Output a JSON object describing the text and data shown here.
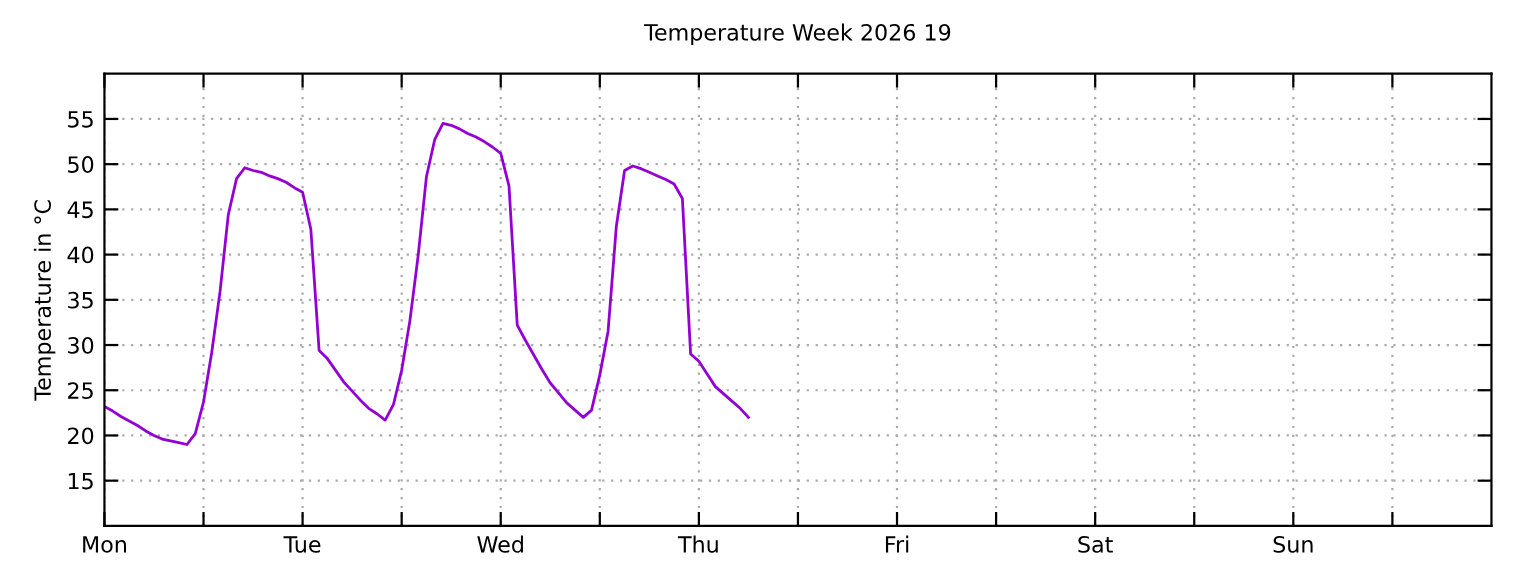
{
  "chart_data": {
    "type": "line",
    "title": "Temperature Week 2026 19",
    "ylabel": "Temperature in °C",
    "categories": [
      "Mon",
      null,
      null,
      null,
      null,
      null,
      null,
      null,
      null,
      null,
      null,
      null,
      null,
      null,
      null,
      null,
      null,
      null,
      null,
      null,
      null,
      null,
      null,
      null,
      "Tue",
      null,
      null,
      null,
      null,
      null,
      null,
      null,
      null,
      null,
      null,
      null,
      null,
      null,
      null,
      null,
      null,
      null,
      null,
      null,
      null,
      null,
      null,
      null,
      "Wed",
      null,
      null,
      null,
      null,
      null,
      null,
      null,
      null,
      null,
      null,
      null,
      null,
      null,
      null,
      null,
      null,
      null,
      null,
      null,
      null,
      null,
      null,
      null,
      "Thu",
      null,
      null,
      null,
      null,
      null,
      null,
      null,
      null,
      null,
      null,
      null,
      null,
      null,
      null,
      null,
      null,
      null,
      null,
      null,
      null,
      null,
      null,
      null,
      "Fri",
      null,
      null,
      null,
      null,
      null,
      null,
      null,
      null,
      null,
      null,
      null,
      null,
      null,
      null,
      null,
      null,
      null,
      null,
      null,
      null,
      null,
      null,
      null,
      "Sat",
      null,
      null,
      null,
      null,
      null,
      null,
      null,
      null,
      null,
      null,
      null,
      null,
      null,
      null,
      null,
      null,
      null,
      null,
      null,
      null,
      null,
      null,
      null,
      "Sun",
      null,
      null,
      null,
      null,
      null,
      null,
      null,
      null,
      null,
      null,
      null,
      null,
      null,
      null,
      null,
      null,
      null,
      null,
      null,
      null,
      null,
      null,
      null
    ],
    "series": [
      {
        "color": "#9400d3",
        "values": [
          23.2,
          22.7,
          22.1,
          21.6,
          21.1,
          20.5,
          20.0,
          19.6,
          19.4,
          19.2,
          19.0,
          20.2,
          23.7,
          29.2,
          35.9,
          44.4,
          48.4,
          49.6,
          49.3,
          49.1,
          48.7,
          48.4,
          48.0,
          47.4,
          46.9,
          42.8,
          29.4,
          28.5,
          27.2,
          25.9,
          24.9,
          23.9,
          23.0,
          22.4,
          21.7,
          23.4,
          27.2,
          32.7,
          39.9,
          48.6,
          52.7,
          54.5,
          54.3,
          53.9,
          53.4,
          53.0,
          52.5,
          51.9,
          51.2,
          47.6,
          32.2,
          30.5,
          28.9,
          27.3,
          25.8,
          24.7,
          23.6,
          22.8,
          22.0,
          22.8,
          26.7,
          31.5,
          43.1,
          49.3,
          49.8,
          49.5,
          49.1,
          48.7,
          48.3,
          47.8,
          46.2,
          29.0,
          28.2,
          26.8,
          25.4,
          24.6,
          23.8,
          23.0,
          22.0,
          null,
          null,
          null,
          null,
          null,
          null,
          null,
          null,
          null,
          null,
          null,
          null,
          null,
          null,
          null,
          null,
          null,
          null,
          null,
          null,
          null,
          null,
          null,
          null,
          null,
          null,
          null,
          null,
          null,
          null,
          null,
          null,
          null,
          null,
          null,
          null,
          null,
          null,
          null,
          null,
          null,
          null,
          null,
          null,
          null,
          null,
          null,
          null,
          null,
          null,
          null,
          null,
          null,
          null,
          null,
          null,
          null,
          null,
          null,
          null,
          null,
          null,
          null,
          null,
          null,
          null,
          null,
          null,
          null,
          null,
          null,
          null,
          null,
          null,
          null,
          null,
          null,
          null,
          null,
          null,
          null,
          null,
          null,
          null,
          null,
          null,
          null,
          null,
          null
        ]
      }
    ],
    "ylim": [
      10,
      60
    ],
    "yticks": [
      15,
      20,
      25,
      30,
      35,
      40,
      45,
      50,
      55
    ],
    "grid": true,
    "marker": "none",
    "line_style": "solid"
  }
}
